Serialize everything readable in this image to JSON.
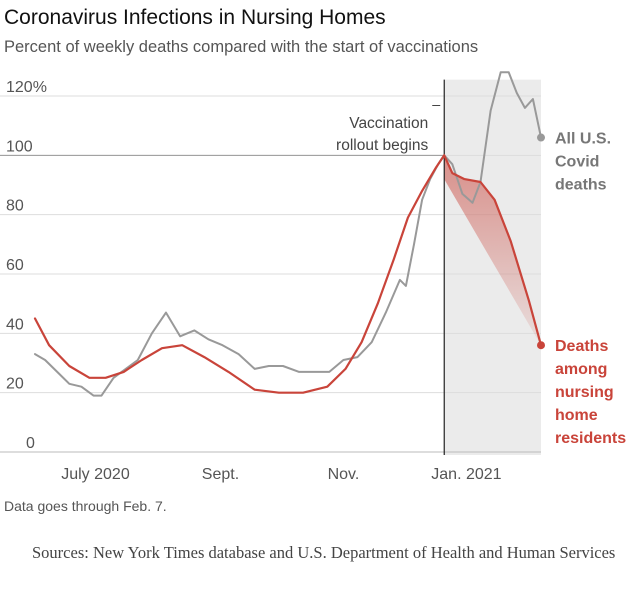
{
  "header": {
    "title": "Coronavirus Infections in Nursing Homes",
    "subtitle": "Percent of weekly deaths compared with the start of vaccinations"
  },
  "footer": {
    "note": "Data goes through Feb. 7.",
    "sources": "Sources: New York Times database and U.S. Department of Health and Human Services"
  },
  "colors": {
    "red": "#c9443a",
    "gray": "#999999",
    "shade": "#ebebeb",
    "grid": "#dddddd"
  },
  "chart_data": {
    "type": "line",
    "title": "Coronavirus Infections in Nursing Homes",
    "subtitle": "Percent of weekly deaths compared with the start of vaccinations",
    "xlabel": "",
    "ylabel": "",
    "x_range": [
      "2020-06-01",
      "2021-02-07"
    ],
    "ylim": [
      0,
      125
    ],
    "y_ticks": [
      {
        "value": 120,
        "label": "120%"
      },
      {
        "value": 100,
        "label": "100"
      },
      {
        "value": 80,
        "label": "80"
      },
      {
        "value": 60,
        "label": "60"
      },
      {
        "value": 40,
        "label": "40"
      },
      {
        "value": 20,
        "label": "20"
      },
      {
        "value": 0,
        "label": "0"
      }
    ],
    "x_ticks": [
      {
        "date": "2020-07-01",
        "label": "July 2020"
      },
      {
        "date": "2020-09-01",
        "label": "Sept."
      },
      {
        "date": "2020-11-01",
        "label": "Nov."
      },
      {
        "date": "2021-01-01",
        "label": "Jan. 2021"
      }
    ],
    "grid": true,
    "vaccination": {
      "date": "2020-12-21",
      "label_lines": [
        "Vaccination",
        "rollout begins"
      ]
    },
    "series": [
      {
        "id": "all",
        "label_lines": [
          "All U.S.",
          "Covid",
          "deaths"
        ],
        "color": "#999999",
        "points": [
          [
            "2020-06-01",
            33
          ],
          [
            "2020-06-06",
            31
          ],
          [
            "2020-06-12",
            27
          ],
          [
            "2020-06-18",
            23
          ],
          [
            "2020-06-24",
            22
          ],
          [
            "2020-06-30",
            19
          ],
          [
            "2020-07-04",
            19
          ],
          [
            "2020-07-10",
            25
          ],
          [
            "2020-07-16",
            28
          ],
          [
            "2020-07-22",
            31
          ],
          [
            "2020-07-29",
            40
          ],
          [
            "2020-08-05",
            47
          ],
          [
            "2020-08-12",
            39
          ],
          [
            "2020-08-19",
            41
          ],
          [
            "2020-08-26",
            38
          ],
          [
            "2020-09-02",
            36
          ],
          [
            "2020-09-10",
            33
          ],
          [
            "2020-09-18",
            28
          ],
          [
            "2020-09-25",
            29
          ],
          [
            "2020-10-02",
            29
          ],
          [
            "2020-10-10",
            27
          ],
          [
            "2020-10-18",
            27
          ],
          [
            "2020-10-25",
            27
          ],
          [
            "2020-11-01",
            31
          ],
          [
            "2020-11-08",
            32
          ],
          [
            "2020-11-15",
            37
          ],
          [
            "2020-11-22",
            47
          ],
          [
            "2020-11-29",
            58
          ],
          [
            "2020-12-02",
            56
          ],
          [
            "2020-12-06",
            70
          ],
          [
            "2020-12-10",
            85
          ],
          [
            "2020-12-14",
            92
          ],
          [
            "2020-12-18",
            97
          ],
          [
            "2020-12-21",
            100
          ],
          [
            "2020-12-25",
            97
          ],
          [
            "2020-12-30",
            87
          ],
          [
            "2021-01-04",
            84
          ],
          [
            "2021-01-08",
            91
          ],
          [
            "2021-01-13",
            115
          ],
          [
            "2021-01-18",
            128
          ],
          [
            "2021-01-22",
            128
          ],
          [
            "2021-01-26",
            121
          ],
          [
            "2021-01-30",
            116
          ],
          [
            "2021-02-03",
            119
          ],
          [
            "2021-02-07",
            106
          ]
        ]
      },
      {
        "id": "nursing",
        "label_lines": [
          "Deaths",
          "among",
          "nursing",
          "home",
          "residents"
        ],
        "color": "#c9443a",
        "points": [
          [
            "2020-06-01",
            45
          ],
          [
            "2020-06-08",
            36
          ],
          [
            "2020-06-18",
            29
          ],
          [
            "2020-06-28",
            25
          ],
          [
            "2020-07-06",
            25
          ],
          [
            "2020-07-15",
            27
          ],
          [
            "2020-07-24",
            31
          ],
          [
            "2020-08-03",
            35
          ],
          [
            "2020-08-13",
            36
          ],
          [
            "2020-08-24",
            32
          ],
          [
            "2020-09-05",
            27
          ],
          [
            "2020-09-18",
            21
          ],
          [
            "2020-09-30",
            20
          ],
          [
            "2020-10-12",
            20
          ],
          [
            "2020-10-24",
            22
          ],
          [
            "2020-11-02",
            28
          ],
          [
            "2020-11-10",
            37
          ],
          [
            "2020-11-18",
            50
          ],
          [
            "2020-11-26",
            65
          ],
          [
            "2020-12-03",
            79
          ],
          [
            "2020-12-10",
            88
          ],
          [
            "2020-12-17",
            96
          ],
          [
            "2020-12-21",
            100
          ],
          [
            "2020-12-25",
            94
          ],
          [
            "2020-12-31",
            92
          ],
          [
            "2021-01-08",
            91
          ],
          [
            "2021-01-15",
            85
          ],
          [
            "2021-01-23",
            71
          ],
          [
            "2021-02-01",
            51
          ],
          [
            "2021-02-07",
            36
          ]
        ]
      }
    ]
  }
}
